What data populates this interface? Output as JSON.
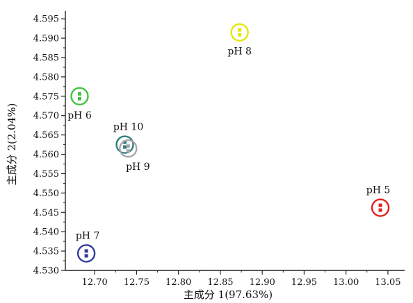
{
  "chart_data": {
    "type": "scatter",
    "title": "",
    "xlabel": "主成分 1(97.63%)",
    "ylabel": "主成分 2(2.04%)",
    "xlim": [
      12.665,
      13.07
    ],
    "ylim": [
      4.53,
      4.597
    ],
    "x_ticks": [
      12.7,
      12.75,
      12.8,
      12.85,
      12.9,
      12.95,
      13.0,
      13.05
    ],
    "y_ticks": [
      4.53,
      4.535,
      4.54,
      4.545,
      4.55,
      4.555,
      4.56,
      4.565,
      4.57,
      4.575,
      4.58,
      4.585,
      4.59,
      4.595
    ],
    "grid": false,
    "points": [
      {
        "label": "pH 8",
        "x": 12.873,
        "y": 4.5915,
        "color": "#e6e600"
      },
      {
        "label": "pH 6",
        "x": 12.682,
        "y": 4.575,
        "color": "#44c144"
      },
      {
        "label": "pH 10",
        "x": 12.736,
        "y": 4.5625,
        "color": "#2f7f7f"
      },
      {
        "label": "pH 9",
        "x": 12.74,
        "y": 4.5615,
        "color": "#a8a8a8"
      },
      {
        "label": "pH 5",
        "x": 13.041,
        "y": 4.5462,
        "color": "#e02020"
      },
      {
        "label": "pH 7",
        "x": 12.69,
        "y": 4.5344,
        "color": "#303c9c"
      }
    ]
  }
}
